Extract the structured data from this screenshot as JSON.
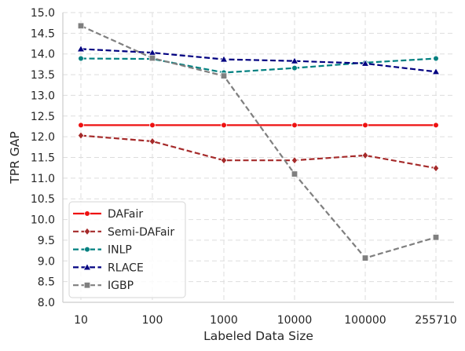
{
  "chart_data": {
    "type": "line",
    "xlabel": "Labeled Data Size",
    "ylabel": "TPR GAP",
    "categories": [
      "10",
      "100",
      "1000",
      "10000",
      "100000",
      "255710"
    ],
    "ylim": [
      8.0,
      15.0
    ],
    "yticks": [
      8.0,
      8.5,
      9.0,
      9.5,
      10.0,
      10.5,
      11.0,
      11.5,
      12.0,
      12.5,
      13.0,
      13.5,
      14.0,
      14.5,
      15.0
    ],
    "grid": true,
    "legend_position": "lower-left",
    "series": [
      {
        "name": "DAFair",
        "color": "#ee1111",
        "dash": "",
        "marker": "circle",
        "width": 2.2,
        "values": [
          12.28,
          12.28,
          12.28,
          12.28,
          12.28,
          12.28
        ]
      },
      {
        "name": "Semi-DAFair",
        "color": "#a52a2a",
        "dash": "7,3.5",
        "marker": "diamond",
        "width": 2.2,
        "values": [
          12.03,
          11.89,
          11.43,
          11.43,
          11.55,
          11.24
        ]
      },
      {
        "name": "INLP",
        "color": "#008080",
        "dash": "7,3.5",
        "marker": "circle",
        "width": 2.2,
        "values": [
          13.89,
          13.88,
          13.55,
          13.66,
          13.79,
          13.89
        ]
      },
      {
        "name": "RLACE",
        "color": "#000080",
        "dash": "7,3.5",
        "marker": "triangle",
        "width": 2.2,
        "values": [
          14.12,
          14.03,
          13.87,
          13.83,
          13.77,
          13.57
        ]
      },
      {
        "name": "IGBP",
        "color": "#7f7f7f",
        "dash": "7,3.5",
        "marker": "square",
        "width": 2.2,
        "values": [
          14.68,
          13.9,
          13.47,
          11.1,
          9.07,
          9.57
        ]
      }
    ]
  }
}
